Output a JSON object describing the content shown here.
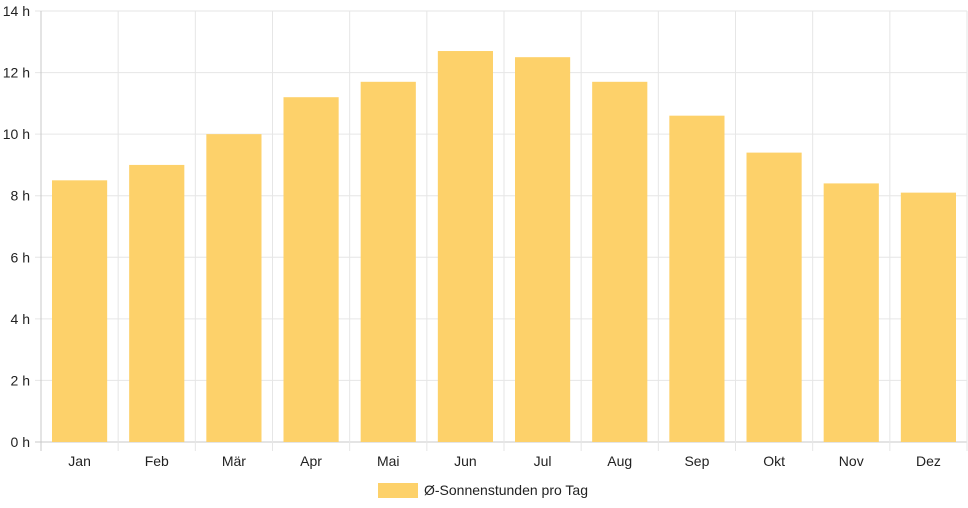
{
  "chart_data": {
    "type": "bar",
    "categories": [
      "Jan",
      "Feb",
      "Mär",
      "Apr",
      "Mai",
      "Jun",
      "Jul",
      "Aug",
      "Sep",
      "Okt",
      "Nov",
      "Dez"
    ],
    "series": [
      {
        "name": "Ø-Sonnenstunden pro Tag",
        "values": [
          8.5,
          9.0,
          10.0,
          11.2,
          11.7,
          12.7,
          12.5,
          11.7,
          10.6,
          9.4,
          8.4,
          8.1
        ],
        "color": "#fdd16a"
      }
    ],
    "y_ticks": [
      "0 h",
      "2 h",
      "4 h",
      "6 h",
      "8 h",
      "10 h",
      "12 h",
      "14 h"
    ],
    "ylim": [
      0,
      14
    ],
    "grid": true,
    "legend_position": "bottom-center"
  }
}
